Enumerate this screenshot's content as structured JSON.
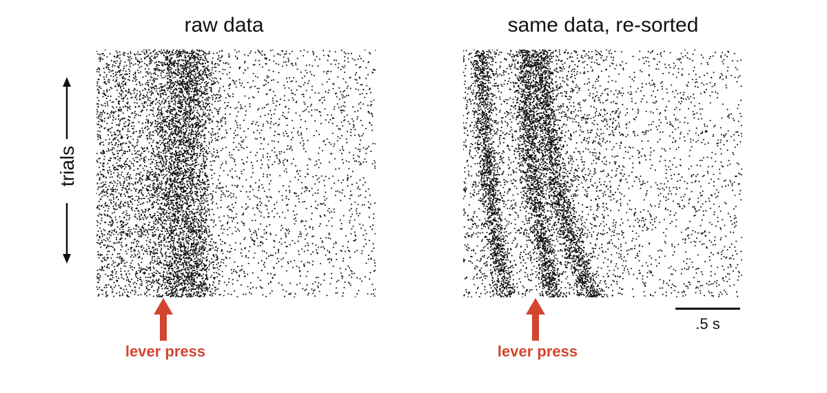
{
  "colors": {
    "spike": "#111111",
    "marker": "#d2452f",
    "text": "#111111"
  },
  "chart_data": [
    {
      "type": "scatter",
      "title": "raw data",
      "ylabel": "trials",
      "marker_label": "lever press",
      "description_of_density": [
        {
          "time_s": [
            0.0,
            0.55
          ],
          "density": "high"
        },
        {
          "time_s": [
            0.55,
            0.95
          ],
          "density": "very high"
        },
        {
          "time_s": [
            0.95,
            2.3
          ],
          "density": "low"
        }
      ],
      "xlim": [
        0,
        2.3
      ],
      "marker_time_s": 0.48
    },
    {
      "type": "scatter",
      "title": "same data, re-sorted",
      "marker_label": "lever press",
      "bands": [
        {
          "time_top_s": 0.25,
          "time_bottom_s": 0.5
        },
        {
          "time_top_s": 0.55,
          "time_bottom_s": 0.85
        },
        {
          "time_top_s": 0.82,
          "time_bottom_s": 1.12
        }
      ],
      "xlim": [
        0,
        2.3
      ],
      "marker_time_s": 0.55,
      "scalebar_label": ".5 s",
      "scalebar_s": 0.5
    }
  ]
}
